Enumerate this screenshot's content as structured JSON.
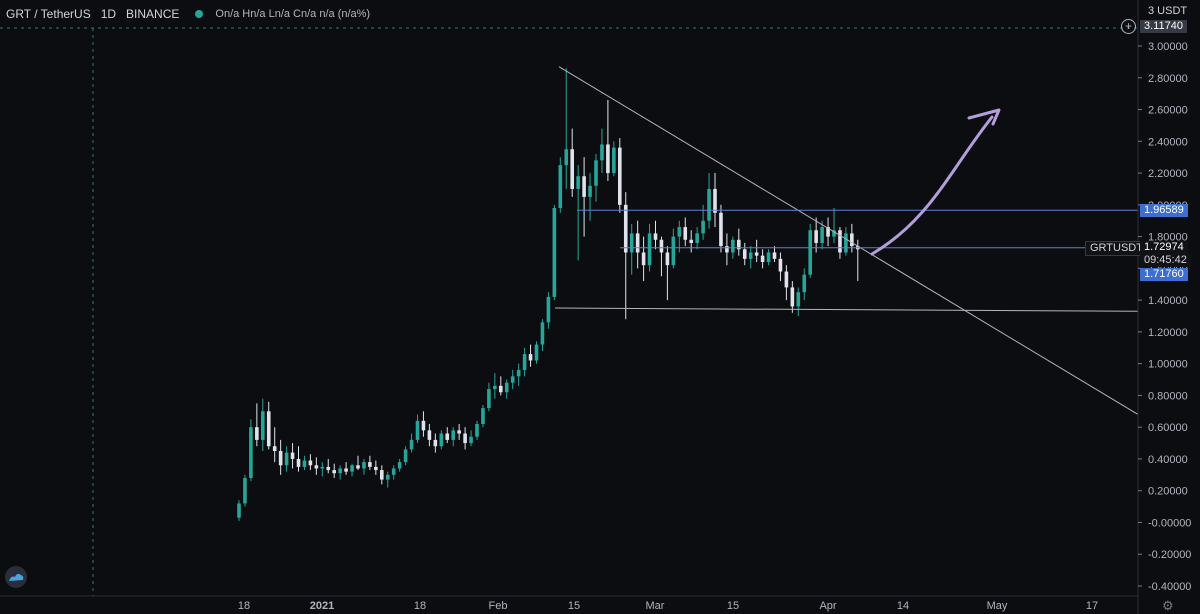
{
  "header": {
    "symbol": "GRT / TetherUS",
    "interval": "1D",
    "exchange": "BINANCE",
    "ohlc": "On/a Hn/a Ln/a Cn/a n/a (n/a%)",
    "status_color": "#26a69a"
  },
  "axis_top": {
    "unit": "3 USDT",
    "crosshair_value": "3.11740"
  },
  "price_tags": {
    "resistance": "1.96589",
    "symbol_label": "GRTUSDT",
    "last_price": "1.72974",
    "countdown": "09:45:42",
    "support": "1.71760"
  },
  "icons": {
    "add": "plus-circle-icon",
    "logo": "tradingview-logo-icon",
    "settings": "gear-icon"
  },
  "colors": {
    "background": "#0c0d10",
    "up_candle": "#26a69a",
    "down_candle": "#e0e3eb",
    "trendline": "#b2b5be",
    "horizontal_line": "#5a82d6",
    "arrow": "#b39ddb",
    "tag_blue": "#3d6fd0"
  },
  "chart_data": {
    "type": "candlestick",
    "ylim": [
      -0.45,
      3.05
    ],
    "y_ticks": [
      "3.00000",
      "2.80000",
      "2.60000",
      "2.40000",
      "2.20000",
      "2.00000",
      "1.80000",
      "1.60000",
      "1.40000",
      "1.20000",
      "1.00000",
      "0.80000",
      "0.60000",
      "0.40000",
      "0.20000",
      "-0.00000",
      "-0.20000",
      "-0.40000"
    ],
    "x_ticks": [
      "18",
      "2021",
      "18",
      "Feb",
      "15",
      "Mar",
      "15",
      "Apr",
      "14",
      "May",
      "17"
    ],
    "candles": [
      [
        0.03,
        0.14,
        0.01,
        0.12
      ],
      [
        0.12,
        0.3,
        0.1,
        0.28
      ],
      [
        0.28,
        0.65,
        0.26,
        0.6
      ],
      [
        0.6,
        0.75,
        0.48,
        0.52
      ],
      [
        0.52,
        0.78,
        0.45,
        0.7
      ],
      [
        0.7,
        0.76,
        0.46,
        0.48
      ],
      [
        0.48,
        0.6,
        0.38,
        0.45
      ],
      [
        0.45,
        0.52,
        0.3,
        0.36
      ],
      [
        0.36,
        0.48,
        0.32,
        0.44
      ],
      [
        0.44,
        0.5,
        0.34,
        0.4
      ],
      [
        0.4,
        0.48,
        0.32,
        0.35
      ],
      [
        0.35,
        0.42,
        0.33,
        0.39
      ],
      [
        0.39,
        0.43,
        0.33,
        0.36
      ],
      [
        0.36,
        0.41,
        0.3,
        0.34
      ],
      [
        0.34,
        0.38,
        0.29,
        0.35
      ],
      [
        0.35,
        0.4,
        0.31,
        0.33
      ],
      [
        0.33,
        0.37,
        0.28,
        0.31
      ],
      [
        0.31,
        0.36,
        0.27,
        0.34
      ],
      [
        0.34,
        0.38,
        0.3,
        0.32
      ],
      [
        0.32,
        0.37,
        0.29,
        0.36
      ],
      [
        0.36,
        0.42,
        0.33,
        0.34
      ],
      [
        0.34,
        0.4,
        0.3,
        0.38
      ],
      [
        0.38,
        0.42,
        0.33,
        0.35
      ],
      [
        0.35,
        0.39,
        0.3,
        0.33
      ],
      [
        0.33,
        0.36,
        0.24,
        0.27
      ],
      [
        0.27,
        0.32,
        0.22,
        0.3
      ],
      [
        0.3,
        0.36,
        0.27,
        0.34
      ],
      [
        0.34,
        0.4,
        0.32,
        0.38
      ],
      [
        0.38,
        0.48,
        0.36,
        0.46
      ],
      [
        0.46,
        0.56,
        0.44,
        0.52
      ],
      [
        0.52,
        0.68,
        0.5,
        0.64
      ],
      [
        0.64,
        0.7,
        0.54,
        0.58
      ],
      [
        0.58,
        0.62,
        0.48,
        0.52
      ],
      [
        0.52,
        0.56,
        0.44,
        0.48
      ],
      [
        0.48,
        0.58,
        0.46,
        0.56
      ],
      [
        0.56,
        0.6,
        0.5,
        0.52
      ],
      [
        0.52,
        0.6,
        0.48,
        0.58
      ],
      [
        0.58,
        0.62,
        0.52,
        0.56
      ],
      [
        0.56,
        0.6,
        0.46,
        0.5
      ],
      [
        0.5,
        0.58,
        0.48,
        0.54
      ],
      [
        0.54,
        0.64,
        0.52,
        0.62
      ],
      [
        0.62,
        0.74,
        0.6,
        0.72
      ],
      [
        0.72,
        0.88,
        0.7,
        0.84
      ],
      [
        0.84,
        0.94,
        0.78,
        0.86
      ],
      [
        0.86,
        0.92,
        0.8,
        0.82
      ],
      [
        0.82,
        0.9,
        0.78,
        0.88
      ],
      [
        0.88,
        0.96,
        0.84,
        0.92
      ],
      [
        0.92,
        1.0,
        0.86,
        0.96
      ],
      [
        0.96,
        1.1,
        0.92,
        1.06
      ],
      [
        1.06,
        1.12,
        0.98,
        1.02
      ],
      [
        1.02,
        1.14,
        1.0,
        1.12
      ],
      [
        1.12,
        1.28,
        1.08,
        1.26
      ],
      [
        1.26,
        1.45,
        1.22,
        1.42
      ],
      [
        1.42,
        2.0,
        1.4,
        1.98
      ],
      [
        1.98,
        2.3,
        1.95,
        2.25
      ],
      [
        2.25,
        2.86,
        2.1,
        2.35
      ],
      [
        2.35,
        2.48,
        2.05,
        2.1
      ],
      [
        2.1,
        2.25,
        1.65,
        2.18
      ],
      [
        2.18,
        2.3,
        1.8,
        2.05
      ],
      [
        2.05,
        2.2,
        1.9,
        2.12
      ],
      [
        2.12,
        2.32,
        2.02,
        2.28
      ],
      [
        2.28,
        2.48,
        2.2,
        2.38
      ],
      [
        2.38,
        2.66,
        2.15,
        2.2
      ],
      [
        2.2,
        2.4,
        2.18,
        2.36
      ],
      [
        2.36,
        2.42,
        1.95,
        2.0
      ],
      [
        2.0,
        2.08,
        1.28,
        1.7
      ],
      [
        1.7,
        1.88,
        1.56,
        1.82
      ],
      [
        1.82,
        1.9,
        1.6,
        1.7
      ],
      [
        1.7,
        1.8,
        1.52,
        1.62
      ],
      [
        1.62,
        1.88,
        1.58,
        1.82
      ],
      [
        1.82,
        1.9,
        1.72,
        1.78
      ],
      [
        1.78,
        1.8,
        1.55,
        1.7
      ],
      [
        1.7,
        1.74,
        1.4,
        1.62
      ],
      [
        1.62,
        1.85,
        1.6,
        1.8
      ],
      [
        1.8,
        1.9,
        1.7,
        1.86
      ],
      [
        1.86,
        1.92,
        1.74,
        1.78
      ],
      [
        1.78,
        1.84,
        1.7,
        1.76
      ],
      [
        1.76,
        1.86,
        1.72,
        1.82
      ],
      [
        1.82,
        2.0,
        1.78,
        1.9
      ],
      [
        1.9,
        2.2,
        1.85,
        2.1
      ],
      [
        2.1,
        2.2,
        1.86,
        1.95
      ],
      [
        1.95,
        2.0,
        1.7,
        1.74
      ],
      [
        1.74,
        1.82,
        1.62,
        1.7
      ],
      [
        1.7,
        1.8,
        1.66,
        1.78
      ],
      [
        1.78,
        1.85,
        1.68,
        1.72
      ],
      [
        1.72,
        1.76,
        1.62,
        1.66
      ],
      [
        1.66,
        1.74,
        1.6,
        1.7
      ],
      [
        1.7,
        1.78,
        1.64,
        1.68
      ],
      [
        1.68,
        1.72,
        1.6,
        1.64
      ],
      [
        1.64,
        1.72,
        1.62,
        1.7
      ],
      [
        1.7,
        1.74,
        1.64,
        1.66
      ],
      [
        1.66,
        1.7,
        1.52,
        1.58
      ],
      [
        1.58,
        1.62,
        1.4,
        1.48
      ],
      [
        1.48,
        1.52,
        1.32,
        1.36
      ],
      [
        1.36,
        1.48,
        1.3,
        1.45
      ],
      [
        1.45,
        1.6,
        1.4,
        1.56
      ],
      [
        1.56,
        1.88,
        1.54,
        1.84
      ],
      [
        1.84,
        1.92,
        1.7,
        1.76
      ],
      [
        1.76,
        1.9,
        1.72,
        1.86
      ],
      [
        1.86,
        1.92,
        1.74,
        1.8
      ],
      [
        1.8,
        1.98,
        1.76,
        1.84
      ],
      [
        1.84,
        1.86,
        1.66,
        1.7
      ],
      [
        1.7,
        1.86,
        1.68,
        1.82
      ],
      [
        1.82,
        1.88,
        1.7,
        1.74
      ],
      [
        1.74,
        1.78,
        1.52,
        1.72
      ]
    ]
  }
}
